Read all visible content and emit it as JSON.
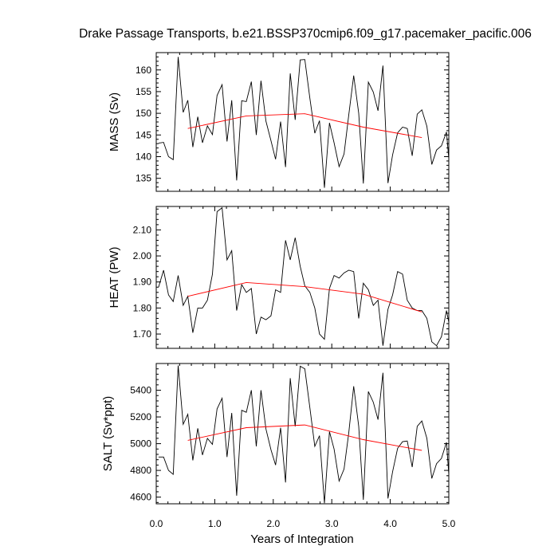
{
  "chart_data": {
    "type": "line",
    "title": "Drake Passage Transports, b.e21.BSSP370cmip6.f09_g17.pacemaker_pacific.006",
    "xlabel": "Years of Integration",
    "xlim": [
      0.0,
      5.0
    ],
    "xticks": [
      "0.0",
      "1.0",
      "2.0",
      "3.0",
      "4.0",
      "5.0"
    ],
    "colors": {
      "raw": "#000000",
      "annual_mean": "#ff0000"
    },
    "panels": [
      {
        "ylabel": "MASS (Sv)",
        "ylim": [
          132.0,
          164.0
        ],
        "yticks": [
          135,
          140,
          145,
          150,
          155,
          160
        ],
        "ytick_labels": [
          "135",
          "140",
          "145",
          "150",
          "155",
          "160"
        ],
        "x": [
          0.04,
          0.125,
          0.21,
          0.29,
          0.375,
          0.46,
          0.54,
          0.625,
          0.71,
          0.79,
          0.875,
          0.96,
          1.04,
          1.125,
          1.21,
          1.29,
          1.375,
          1.46,
          1.54,
          1.625,
          1.71,
          1.79,
          1.875,
          1.96,
          2.04,
          2.125,
          2.21,
          2.29,
          2.375,
          2.46,
          2.54,
          2.625,
          2.71,
          2.79,
          2.875,
          2.96,
          3.04,
          3.125,
          3.21,
          3.29,
          3.375,
          3.46,
          3.54,
          3.625,
          3.71,
          3.79,
          3.875,
          3.96,
          4.04,
          4.125,
          4.21,
          4.29,
          4.375,
          4.46,
          4.54,
          4.625,
          4.71,
          4.79,
          4.875,
          4.96,
          5.0
        ],
        "series": [
          {
            "values": [
              143.1,
              143.3,
              140.0,
              139.3,
              163.0,
              150.2,
              153.0,
              142.2,
              149.2,
              143.2,
              147.1,
              145.1,
              154.1,
              156.6,
              143.5,
              153.0,
              134.5,
              152.9,
              152.7,
              157.3,
              145.0,
              157.5,
              148.2,
              143.7,
              139.4,
              148.1,
              137.6,
              159.2,
              148.5,
              162.3,
              162.4,
              153.5,
              145.4,
              148.3,
              132.8,
              147.8,
              143.2,
              137.7,
              140.6,
              149.6,
              158.7,
              150.0,
              133.8,
              157.2,
              154.9,
              150.6,
              161.0,
              133.9,
              140.4,
              145.5,
              146.8,
              146.5,
              140.2,
              149.8,
              150.8,
              147.0,
              138.2,
              141.5,
              142.5,
              145.7,
              139.5
            ]
          },
          {
            "x": [
              0.54,
              1.54,
              2.54,
              3.54,
              4.54
            ],
            "values": [
              146.5,
              149.4,
              149.9,
              146.8,
              144.4
            ]
          }
        ]
      },
      {
        "ylabel": "HEAT (PW)",
        "ylim": [
          1.645,
          2.19
        ],
        "yticks": [
          1.7,
          1.8,
          1.9,
          2.0,
          2.1
        ],
        "ytick_labels": [
          "1.70",
          "1.80",
          "1.90",
          "2.00",
          "2.10"
        ],
        "x": [
          0.04,
          0.125,
          0.21,
          0.29,
          0.375,
          0.46,
          0.54,
          0.625,
          0.71,
          0.79,
          0.875,
          0.96,
          1.04,
          1.125,
          1.21,
          1.29,
          1.375,
          1.46,
          1.54,
          1.625,
          1.71,
          1.79,
          1.875,
          1.96,
          2.04,
          2.125,
          2.21,
          2.29,
          2.375,
          2.46,
          2.54,
          2.625,
          2.71,
          2.79,
          2.875,
          2.96,
          3.04,
          3.125,
          3.21,
          3.29,
          3.375,
          3.46,
          3.54,
          3.625,
          3.71,
          3.79,
          3.875,
          3.96,
          4.04,
          4.125,
          4.21,
          4.29,
          4.375,
          4.46,
          4.54,
          4.625,
          4.71,
          4.79,
          4.875,
          4.96,
          5.0
        ],
        "series": [
          {
            "values": [
              1.88,
              1.945,
              1.85,
              1.825,
              1.925,
              1.81,
              1.845,
              1.705,
              1.8,
              1.8,
              1.83,
              1.93,
              2.17,
              2.185,
              1.985,
              2.02,
              1.79,
              1.89,
              1.86,
              1.875,
              1.7,
              1.765,
              1.755,
              1.77,
              1.87,
              1.86,
              2.06,
              1.985,
              2.07,
              1.96,
              1.885,
              1.86,
              1.8,
              1.7,
              1.68,
              1.875,
              1.925,
              1.915,
              1.935,
              1.945,
              1.94,
              1.76,
              1.895,
              1.87,
              1.81,
              1.83,
              1.655,
              1.795,
              1.85,
              1.94,
              1.93,
              1.83,
              1.8,
              1.79,
              1.79,
              1.76,
              1.67,
              1.655,
              1.69,
              1.79,
              1.745
            ]
          },
          {
            "x": [
              0.54,
              1.54,
              2.54,
              3.54,
              4.54
            ],
            "values": [
              1.845,
              1.898,
              1.882,
              1.853,
              1.785
            ]
          }
        ]
      },
      {
        "ylabel": "SALT (Sv*ppt)",
        "ylim": [
          4550,
          5600
        ],
        "yticks": [
          4600,
          4800,
          5000,
          5200,
          5400
        ],
        "ytick_labels": [
          "4600",
          "4800",
          "5000",
          "5200",
          "5400"
        ],
        "x": [
          0.04,
          0.125,
          0.21,
          0.29,
          0.375,
          0.46,
          0.54,
          0.625,
          0.71,
          0.79,
          0.875,
          0.96,
          1.04,
          1.125,
          1.21,
          1.29,
          1.375,
          1.46,
          1.54,
          1.625,
          1.71,
          1.79,
          1.875,
          1.96,
          2.04,
          2.125,
          2.21,
          2.29,
          2.375,
          2.46,
          2.54,
          2.625,
          2.71,
          2.79,
          2.875,
          2.96,
          3.04,
          3.125,
          3.21,
          3.29,
          3.375,
          3.46,
          3.54,
          3.625,
          3.71,
          3.79,
          3.875,
          3.96,
          4.04,
          4.125,
          4.21,
          4.29,
          4.375,
          4.46,
          4.54,
          4.625,
          4.71,
          4.79,
          4.875,
          4.96,
          5.0
        ],
        "series": [
          {
            "values": [
              4900,
              4900,
              4800,
              4770,
              5585,
              5145,
              5220,
              4875,
              5115,
              4915,
              5040,
              4995,
              5260,
              5340,
              4900,
              5230,
              4610,
              5250,
              5235,
              5400,
              4980,
              5400,
              5110,
              4955,
              4840,
              5120,
              4710,
              5490,
              5130,
              5580,
              5560,
              5270,
              4980,
              5060,
              4555,
              5090,
              4960,
              4720,
              4810,
              5080,
              5430,
              5130,
              4580,
              5390,
              5310,
              5180,
              5530,
              4590,
              4790,
              4965,
              5015,
              5020,
              4825,
              5130,
              5170,
              5040,
              4740,
              4850,
              4890,
              5010,
              4770
            ]
          },
          {
            "x": [
              0.54,
              1.54,
              2.54,
              3.54,
              4.54
            ],
            "values": [
              5025,
              5120,
              5140,
              5030,
              4950
            ]
          }
        ]
      }
    ]
  }
}
